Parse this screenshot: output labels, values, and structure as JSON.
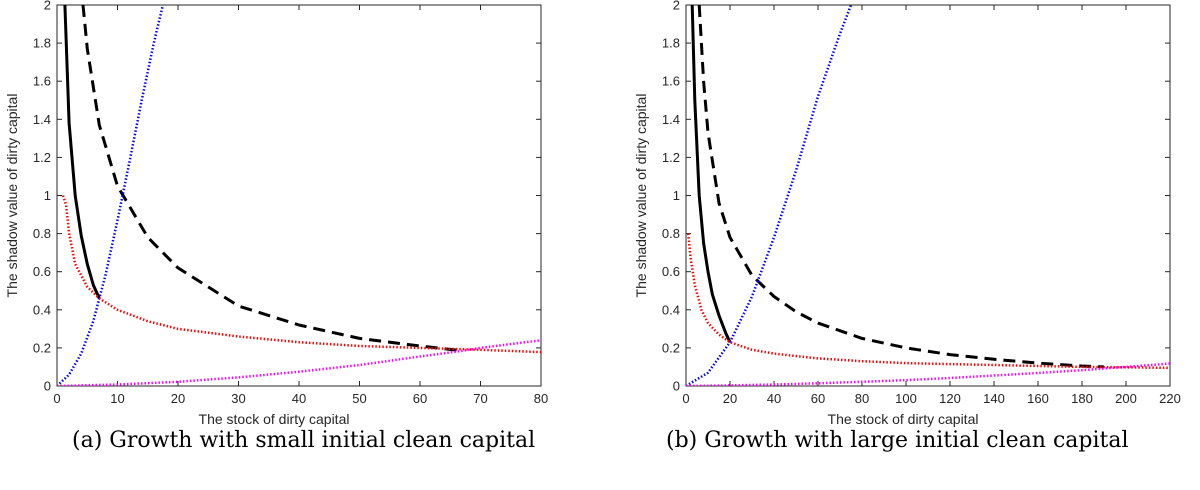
{
  "chart_data": [
    {
      "type": "line",
      "caption": "(a) Growth with small initial clean capital",
      "xlabel": "The stock of dirty capital",
      "ylabel": "The shadow value of dirty capital",
      "xlim": [
        0,
        80
      ],
      "ylim": [
        0,
        2
      ],
      "xticks": [
        0,
        10,
        20,
        30,
        40,
        50,
        60,
        70,
        80
      ],
      "yticks": [
        0,
        0.2,
        0.4,
        0.6,
        0.8,
        1,
        1.2,
        1.4,
        1.6,
        1.8,
        2
      ],
      "grid": false,
      "series": [
        {
          "style": "solid",
          "color": "#000000",
          "x": [
            1.3,
            2,
            3,
            4,
            5,
            6,
            7
          ],
          "y": [
            2.0,
            1.38,
            1.0,
            0.79,
            0.64,
            0.53,
            0.46
          ]
        },
        {
          "style": "dashed",
          "color": "#000000",
          "x": [
            4.3,
            5,
            7,
            10,
            15,
            20,
            30,
            40,
            50,
            60,
            67
          ],
          "y": [
            2.0,
            1.77,
            1.37,
            1.05,
            0.78,
            0.62,
            0.42,
            0.32,
            0.25,
            0.21,
            0.185
          ]
        },
        {
          "style": "dotted",
          "color": "#0000ff",
          "x": [
            0,
            2,
            4,
            6,
            7,
            8,
            10,
            12,
            14,
            16,
            17.5
          ],
          "y": [
            0,
            0.06,
            0.17,
            0.34,
            0.46,
            0.58,
            0.87,
            1.18,
            1.5,
            1.8,
            2.0
          ]
        },
        {
          "style": "dotted",
          "color": "#ff0000",
          "x": [
            1,
            1.5,
            2,
            3,
            5,
            7,
            10,
            15,
            20,
            30,
            40,
            50,
            60,
            70,
            80
          ],
          "y": [
            1.0,
            0.95,
            0.8,
            0.64,
            0.52,
            0.46,
            0.4,
            0.34,
            0.3,
            0.26,
            0.23,
            0.21,
            0.2,
            0.19,
            0.178
          ]
        },
        {
          "style": "dotted",
          "color": "#ff00ff",
          "x": [
            0,
            10,
            20,
            30,
            40,
            50,
            60,
            67,
            70,
            80
          ],
          "y": [
            0,
            0.008,
            0.022,
            0.045,
            0.075,
            0.11,
            0.155,
            0.185,
            0.2,
            0.24
          ]
        }
      ]
    },
    {
      "type": "line",
      "caption": "(b) Growth with large initial clean capital",
      "xlabel": "The stock of dirty capital",
      "ylabel": "The shadow value of dirty capital",
      "xlim": [
        0,
        220
      ],
      "ylim": [
        0,
        2
      ],
      "xticks": [
        0,
        20,
        40,
        60,
        80,
        100,
        120,
        140,
        160,
        180,
        200,
        220
      ],
      "yticks": [
        0,
        0.2,
        0.4,
        0.6,
        0.8,
        1,
        1.2,
        1.4,
        1.6,
        1.8,
        2
      ],
      "grid": false,
      "series": [
        {
          "style": "solid",
          "color": "#000000",
          "x": [
            2.8,
            4,
            6,
            8,
            10,
            12,
            15,
            18,
            20
          ],
          "y": [
            2.0,
            1.5,
            1.0,
            0.75,
            0.6,
            0.48,
            0.37,
            0.28,
            0.23
          ]
        },
        {
          "style": "dashed",
          "color": "#000000",
          "x": [
            6,
            8,
            10,
            15,
            20,
            30,
            40,
            50,
            60,
            80,
            100,
            120,
            140,
            160,
            180,
            190
          ],
          "y": [
            2.0,
            1.6,
            1.33,
            0.96,
            0.78,
            0.58,
            0.47,
            0.39,
            0.33,
            0.25,
            0.2,
            0.165,
            0.14,
            0.12,
            0.105,
            0.1
          ]
        },
        {
          "style": "dotted",
          "color": "#0000ff",
          "x": [
            0,
            10,
            20,
            30,
            40,
            50,
            60,
            70,
            75
          ],
          "y": [
            0,
            0.07,
            0.23,
            0.47,
            0.78,
            1.13,
            1.52,
            1.85,
            2.0
          ]
        },
        {
          "style": "dotted",
          "color": "#ff0000",
          "x": [
            1,
            2,
            4,
            7,
            10,
            15,
            20,
            30,
            40,
            60,
            80,
            100,
            120,
            140,
            160,
            180,
            200,
            220
          ],
          "y": [
            0.8,
            0.68,
            0.53,
            0.4,
            0.33,
            0.27,
            0.23,
            0.19,
            0.17,
            0.145,
            0.13,
            0.12,
            0.115,
            0.11,
            0.105,
            0.1,
            0.098,
            0.095
          ]
        },
        {
          "style": "dotted",
          "color": "#ff00ff",
          "x": [
            0,
            20,
            40,
            60,
            80,
            100,
            120,
            140,
            160,
            180,
            200,
            220
          ],
          "y": [
            0,
            0.003,
            0.008,
            0.014,
            0.022,
            0.031,
            0.042,
            0.055,
            0.068,
            0.083,
            0.1,
            0.118
          ]
        }
      ]
    }
  ]
}
